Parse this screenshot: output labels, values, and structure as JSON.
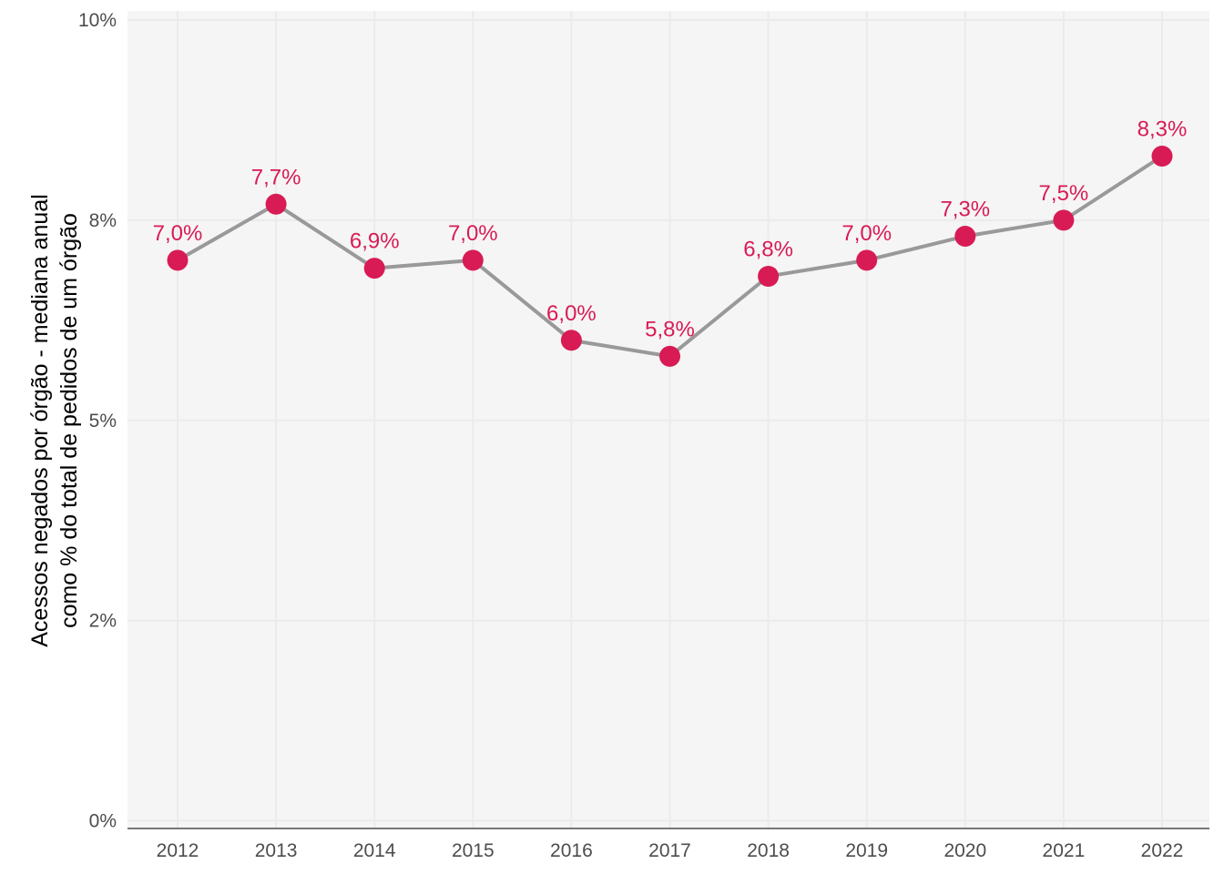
{
  "chart_data": {
    "type": "line",
    "title": "",
    "xlabel": "",
    "ylabel_lines": [
      "Acessos negados por órgão - mediana anual",
      "como % do total de pedidos de um órgão"
    ],
    "x": [
      "2012",
      "2013",
      "2014",
      "2015",
      "2016",
      "2017",
      "2018",
      "2019",
      "2020",
      "2021",
      "2022"
    ],
    "y": [
      7.0,
      7.7,
      6.9,
      7.0,
      6.0,
      5.8,
      6.8,
      7.0,
      7.3,
      7.5,
      8.3
    ],
    "data_labels": [
      "7,0%",
      "7,7%",
      "6,9%",
      "7,0%",
      "6,0%",
      "5,8%",
      "6,8%",
      "7,0%",
      "7,3%",
      "7,5%",
      "8,3%"
    ],
    "yticks": [
      0,
      2.5,
      5,
      7.5,
      10
    ],
    "ytick_labels": [
      "0%",
      "2%",
      "5%",
      "8%",
      "10%"
    ],
    "ylim": [
      0,
      10
    ],
    "grid": true,
    "legend": "none",
    "colors": {
      "panel_background": "#f5f5f5",
      "grid": "#ebebeb",
      "line": "#999999",
      "point": "#d81b55",
      "label": "#d81b55",
      "axis_line": "#4d4d4d"
    }
  }
}
